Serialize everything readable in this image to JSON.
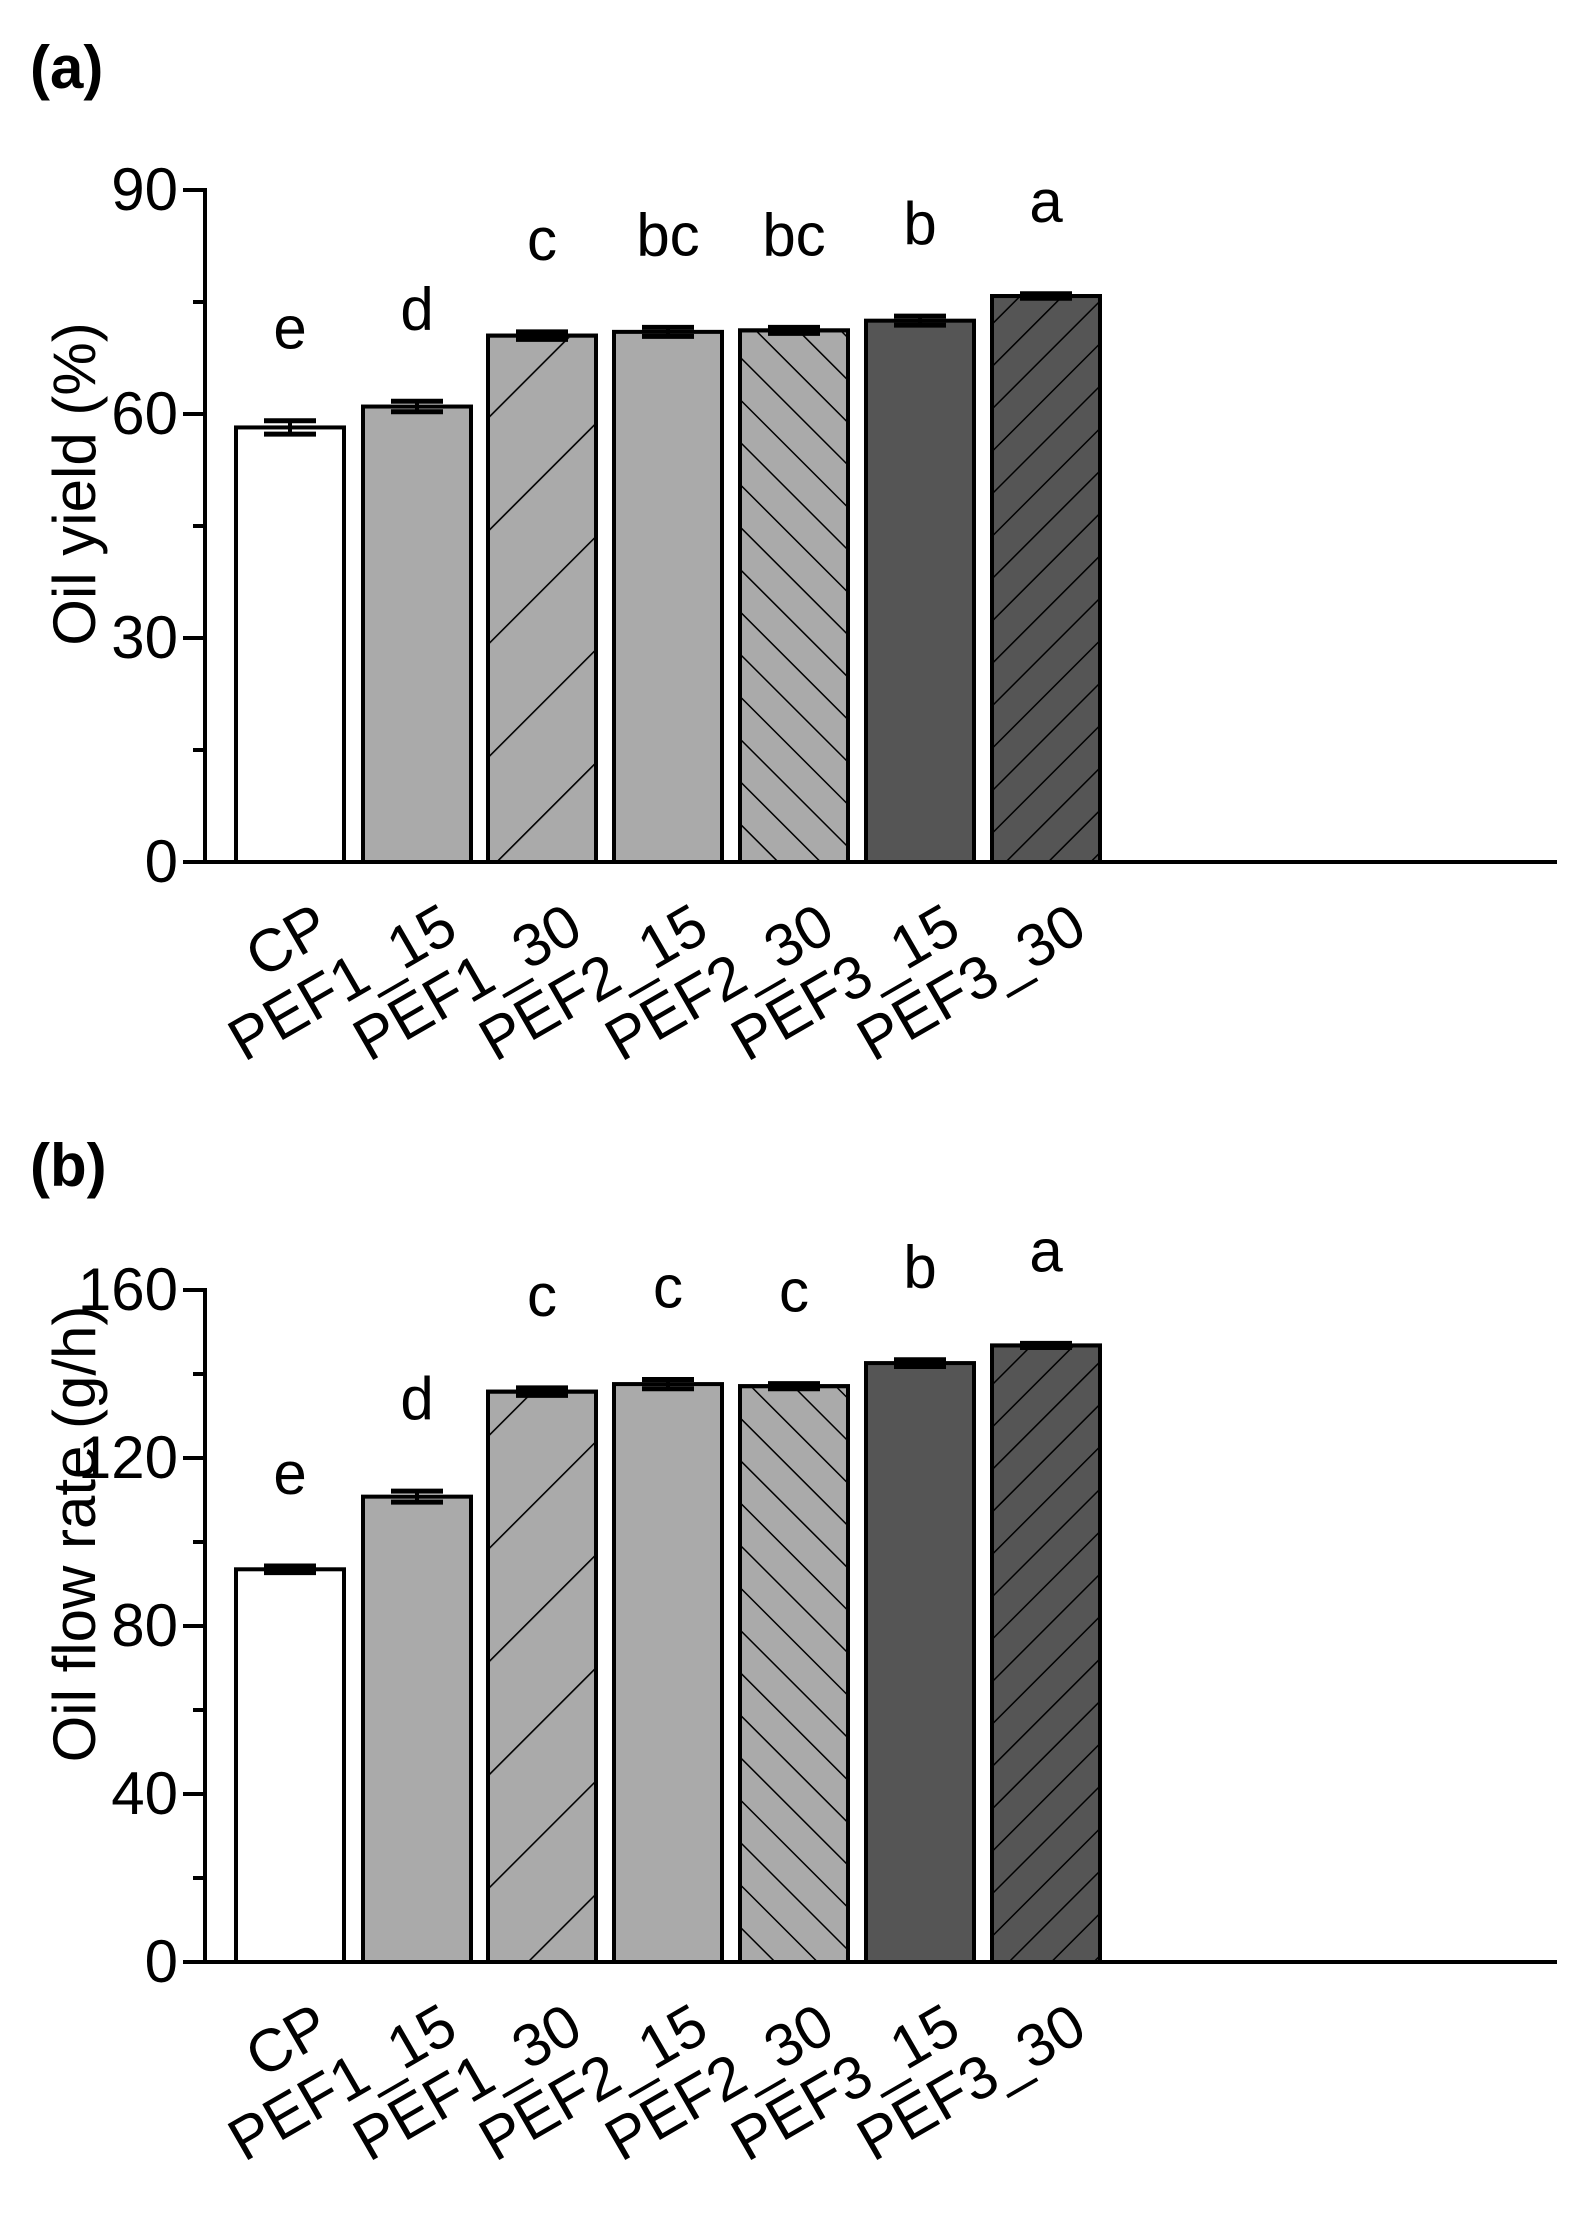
{
  "chart_data": [
    {
      "type": "bar",
      "panel_label": "(a)",
      "ylabel": "Oil yield (%)",
      "xlabel": "",
      "ylim": [
        0,
        90
      ],
      "yticks": [
        "0",
        "30",
        "60",
        "90"
      ],
      "ytick_values": [
        0,
        30,
        60,
        90
      ],
      "categories": [
        "CP",
        "PEF1_15",
        "PEF1_30",
        "PEF2_15",
        "PEF2_30",
        "PEF3_15",
        "PEF3_30"
      ],
      "values": [
        58.2,
        61.0,
        70.5,
        71.0,
        71.2,
        72.5,
        75.8
      ],
      "errors": [
        0.9,
        0.7,
        0.5,
        0.6,
        0.4,
        0.6,
        0.3
      ],
      "significance_letters": [
        "e",
        "d",
        "c",
        "bc",
        "bc",
        "b",
        "a"
      ]
    },
    {
      "type": "bar",
      "panel_label": "(b)",
      "ylabel": "Oil flow rate (g/h)",
      "xlabel": "",
      "ylim": [
        0,
        160
      ],
      "yticks": [
        "0",
        "40",
        "80",
        "120",
        "160"
      ],
      "ytick_values": [
        0,
        40,
        80,
        120,
        160
      ],
      "categories": [
        "CP",
        "PEF1_15",
        "PEF1_30",
        "PEF2_15",
        "PEF2_30",
        "PEF3_15",
        "PEF3_30"
      ],
      "values": [
        93.5,
        110.8,
        135.8,
        137.6,
        137.1,
        142.6,
        146.8
      ],
      "errors": [
        0.8,
        1.3,
        0.9,
        1.1,
        0.6,
        0.8,
        0.5
      ],
      "significance_letters": [
        "e",
        "d",
        "c",
        "c",
        "c",
        "b",
        "a"
      ]
    }
  ],
  "bar_styles": [
    {
      "fill": "#ffffff",
      "hatch": "none"
    },
    {
      "fill": "#aaaaaa",
      "hatch": "none"
    },
    {
      "fill": "#aaaaaa",
      "hatch": "backslash-wide"
    },
    {
      "fill": "#aaaaaa",
      "hatch": "none"
    },
    {
      "fill": "#aaaaaa",
      "hatch": "slash-dense"
    },
    {
      "fill": "#555555",
      "hatch": "none"
    },
    {
      "fill": "#555555",
      "hatch": "backslash-dense"
    }
  ]
}
